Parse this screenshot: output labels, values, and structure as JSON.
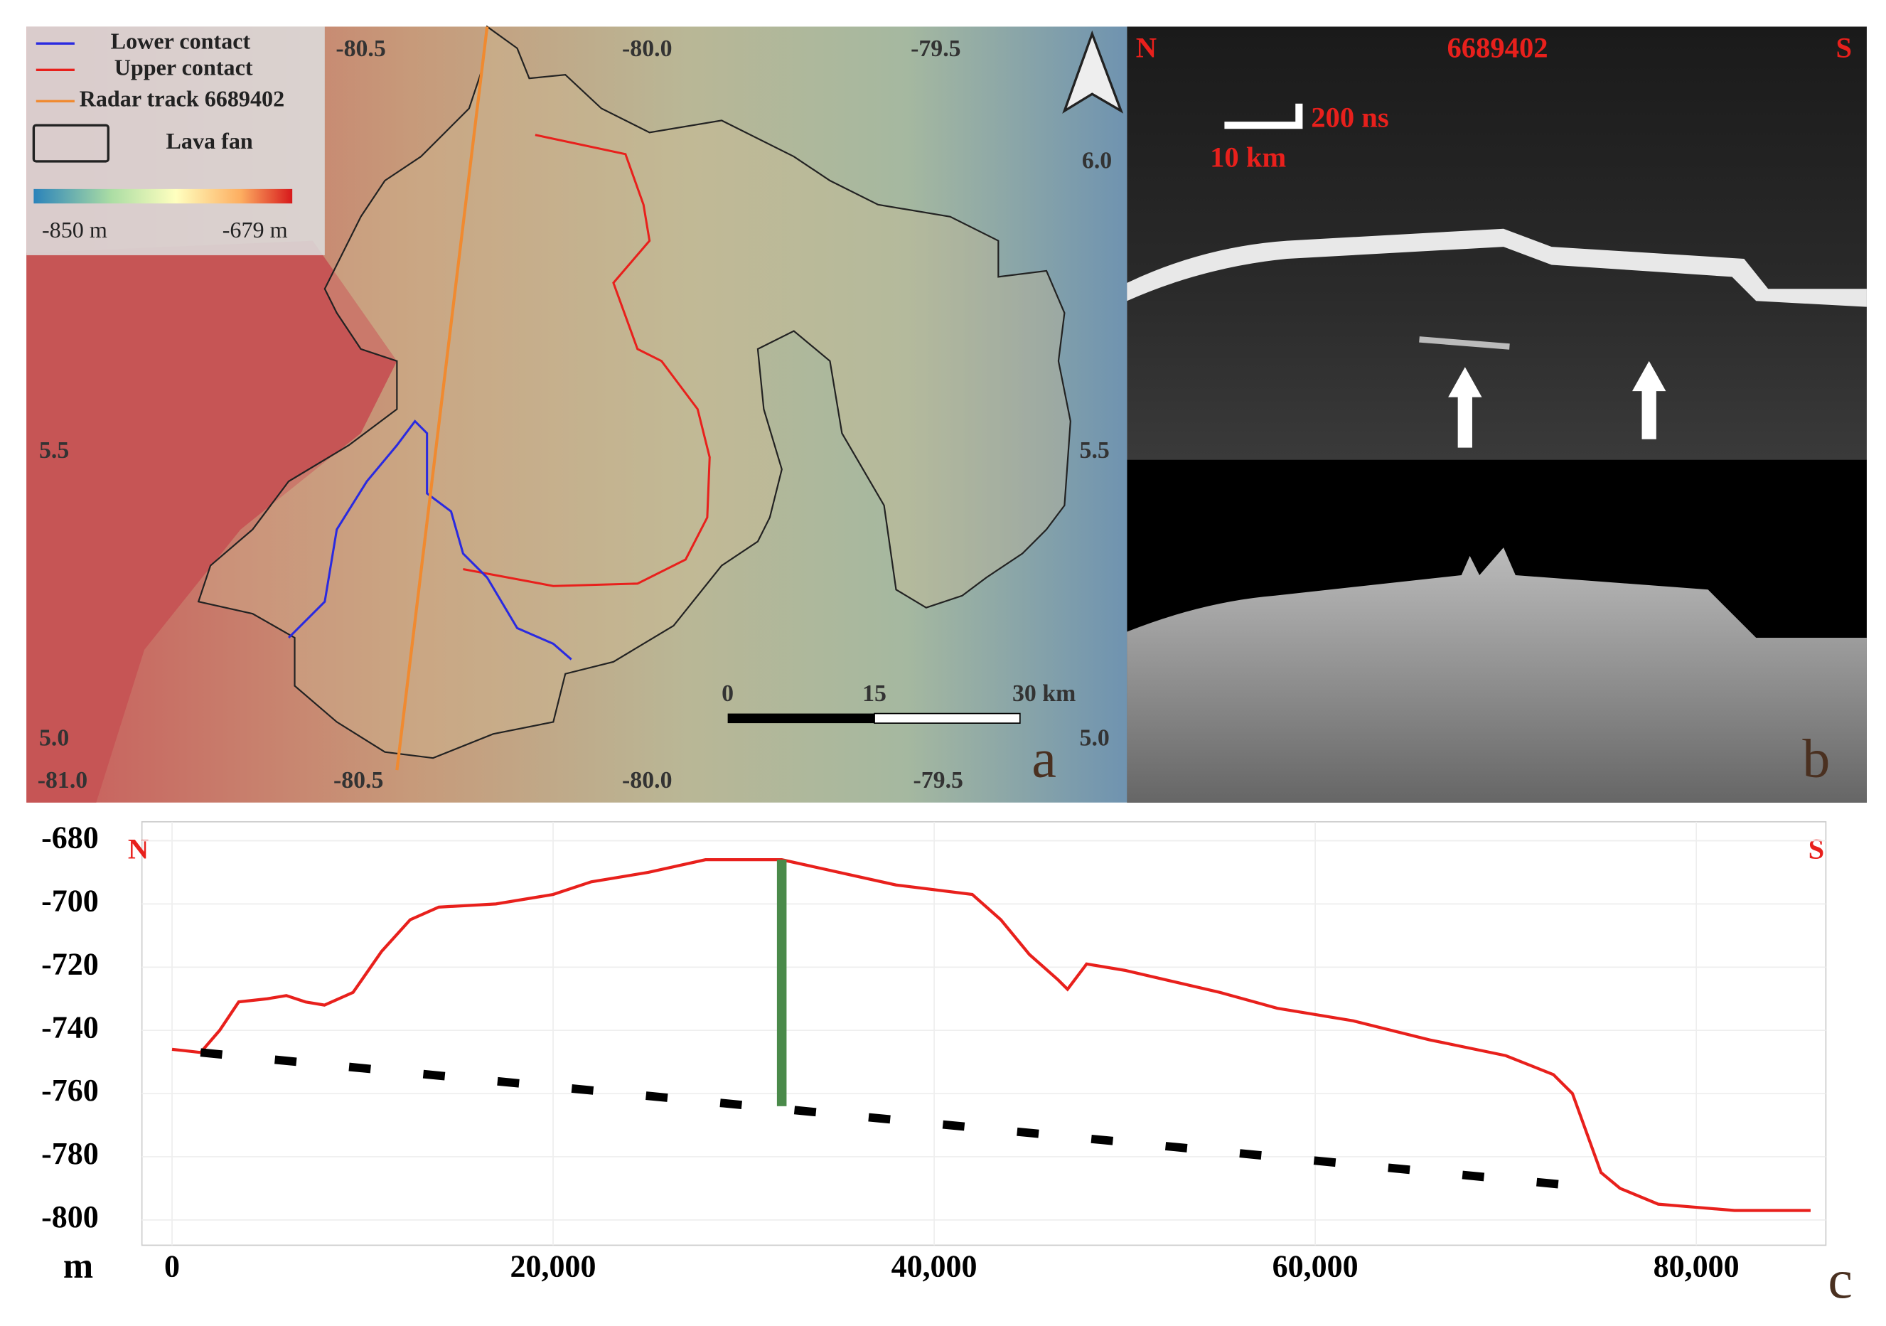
{
  "panel_a": {
    "label": "a",
    "legend": [
      "Lower contact",
      "Upper contact",
      "Radar track 6689402",
      "Lava fan"
    ],
    "colorbar": [
      "-850 m",
      "-679 m"
    ],
    "lon_top": [
      "-80.5",
      "-80.0",
      "-79.5"
    ],
    "lon_bottom": [
      "-81.0",
      "-80.5",
      "-80.0",
      "-79.5"
    ],
    "lat_left": [
      "5.5",
      "5.0"
    ],
    "lat_right": [
      "6.0",
      "5.5",
      "5.0"
    ],
    "scale_bar": [
      "0",
      "15",
      "30 km"
    ]
  },
  "panel_b": {
    "label": "b",
    "north": "N",
    "south": "S",
    "track": "6689402",
    "vertical_scale": "200 ns",
    "horizontal_scale": "10 km"
  },
  "chart_data": {
    "type": "line",
    "label": "c",
    "ylabel": "m",
    "north": "N",
    "south": "S",
    "xlim": [
      -1580,
      86800
    ],
    "ylim": [
      -808,
      -674
    ],
    "xticks": [
      0,
      {
        "value": 20000,
        "label": "20,000"
      },
      {
        "value": 40000,
        "label": "40,000"
      },
      {
        "value": 60000,
        "label": "60,000"
      },
      {
        "value": 80000,
        "label": "80,000"
      }
    ],
    "yticks": [
      -680,
      -700,
      -720,
      -740,
      -760,
      -780,
      -800
    ],
    "grid": true,
    "series": [
      {
        "color": "#e8201c",
        "style": "solid",
        "x": [
          0,
          1500,
          2500,
          3500,
          5000,
          6000,
          7000,
          8000,
          9500,
          11000,
          12500,
          14000,
          17000,
          20000,
          22000,
          25000,
          28000,
          30000,
          32000,
          35000,
          38000,
          42000,
          43500,
          45000,
          46500,
          47000,
          48000,
          50000,
          55000,
          58000,
          62000,
          66000,
          70000,
          72500,
          73500,
          75000,
          76000,
          78000,
          80000,
          82000,
          86000
        ],
        "values": [
          -746,
          -747,
          -740,
          -731,
          -730,
          -729,
          -731,
          -732,
          -728,
          -715,
          -705,
          -701,
          -700,
          -697,
          -693,
          -690,
          -686,
          -686,
          -686,
          -690,
          -694,
          -697,
          -705,
          -716,
          -724,
          -727,
          -719,
          -721,
          -728,
          -733,
          -737,
          -743,
          -748,
          -754,
          -760,
          -785,
          -790,
          -795,
          -796,
          -797,
          -797
        ]
      },
      {
        "color": "#000000",
        "style": "dashed",
        "x": [
          1500,
          75000
        ],
        "values": [
          -747,
          -790
        ]
      },
      {
        "color": "#4a8a4a",
        "style": "bar",
        "x": [
          32000
        ],
        "values": [
          -764
        ],
        "base": [
          -686
        ]
      }
    ]
  }
}
